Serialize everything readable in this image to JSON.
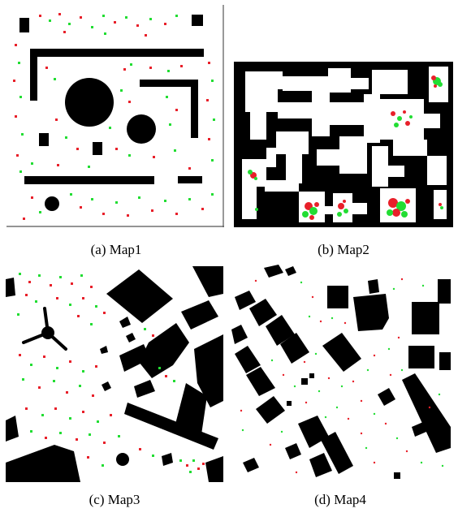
{
  "figure": {
    "panels": [
      {
        "id": "a",
        "caption": "(a) Map1"
      },
      {
        "id": "b",
        "caption": "(b) Map2"
      },
      {
        "id": "c",
        "caption": "(c) Map3"
      },
      {
        "id": "d",
        "caption": "(d) Map4"
      }
    ],
    "marker_colors": {
      "red": "#e8202a",
      "green": "#22dd33",
      "obstacle": "#000000",
      "free": "#ffffff"
    }
  }
}
